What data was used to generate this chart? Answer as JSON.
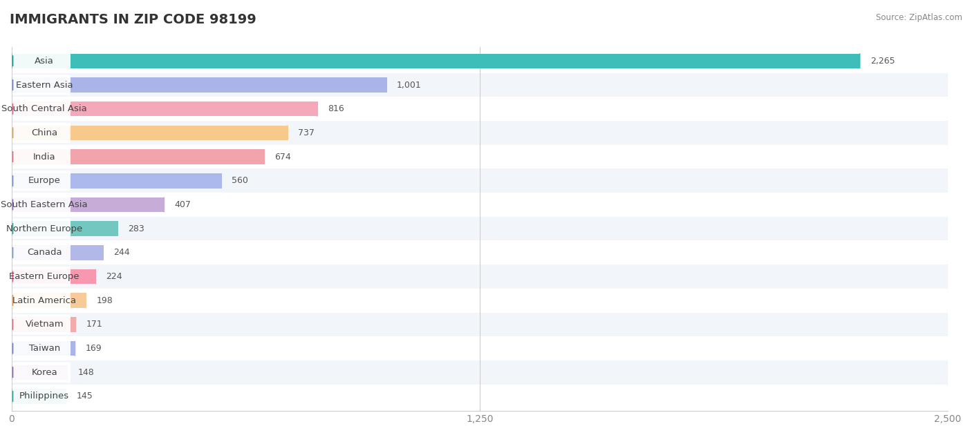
{
  "title": "IMMIGRANTS IN ZIP CODE 98199",
  "source": "Source: ZipAtlas.com",
  "categories": [
    "Asia",
    "Eastern Asia",
    "South Central Asia",
    "China",
    "India",
    "Europe",
    "South Eastern Asia",
    "Northern Europe",
    "Canada",
    "Eastern Europe",
    "Latin America",
    "Vietnam",
    "Taiwan",
    "Korea",
    "Philippines"
  ],
  "values": [
    2265,
    1001,
    816,
    737,
    674,
    560,
    407,
    283,
    244,
    224,
    198,
    171,
    169,
    148,
    145
  ],
  "bar_colors": [
    "#3dbdb8",
    "#aab4e8",
    "#f5a8ba",
    "#f7c98c",
    "#f2a4ac",
    "#aab8ec",
    "#c8acd8",
    "#72c8c0",
    "#b2b8e8",
    "#f898b0",
    "#f8ca98",
    "#f2aaaa",
    "#aab4e8",
    "#c2aad4",
    "#72c8c0"
  ],
  "circle_colors": [
    "#1e9e98",
    "#7888c8",
    "#e07090",
    "#dda060",
    "#d87880",
    "#7898cc",
    "#9878b8",
    "#3ca8a0",
    "#8898c8",
    "#e07090",
    "#e0a060",
    "#d87880",
    "#7888c8",
    "#9070b0",
    "#3ca8a0"
  ],
  "xlim": [
    0,
    2500
  ],
  "xticks": [
    0,
    1250,
    2500
  ],
  "xtick_labels": [
    "0",
    "1,250",
    "2,500"
  ],
  "bg_color": "#ffffff",
  "bar_height": 0.62,
  "title_fontsize": 14,
  "label_fontsize": 9.5,
  "value_fontsize": 9.0
}
